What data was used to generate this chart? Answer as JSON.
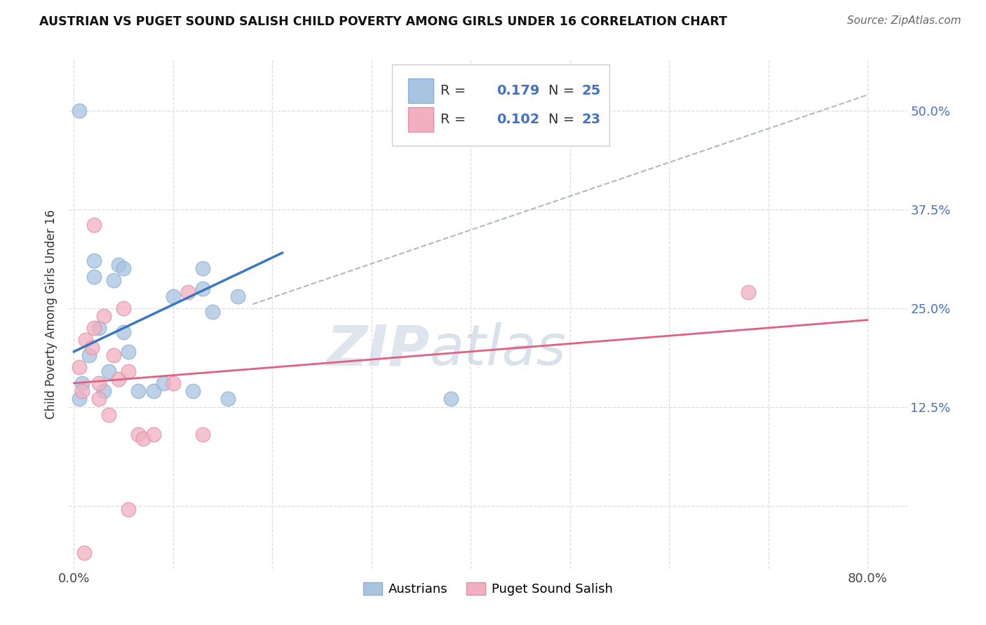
{
  "title": "AUSTRIAN VS PUGET SOUND SALISH CHILD POVERTY AMONG GIRLS UNDER 16 CORRELATION CHART",
  "source": "Source: ZipAtlas.com",
  "ylabel": "Child Poverty Among Girls Under 16",
  "ylim": [
    -0.08,
    0.565
  ],
  "xlim": [
    -0.005,
    0.84
  ],
  "yticks": [
    0.0,
    0.125,
    0.25,
    0.375,
    0.5
  ],
  "ytick_labels_right": [
    "",
    "12.5%",
    "25.0%",
    "37.5%",
    "50.0%"
  ],
  "xticks": [
    0.0,
    0.1,
    0.2,
    0.3,
    0.4,
    0.5,
    0.6,
    0.7,
    0.8
  ],
  "xtick_labels": [
    "0.0%",
    "",
    "",
    "",
    "",
    "",
    "",
    "",
    "80.0%"
  ],
  "blue_R": "0.179",
  "blue_N": "25",
  "pink_R": "0.102",
  "pink_N": "23",
  "blue_scatter_color": "#a8c4e0",
  "pink_scatter_color": "#f2afc0",
  "blue_line_color": "#3b78c3",
  "pink_line_color": "#e06080",
  "dashed_line_color": "#b0b8c8",
  "legend_label_blue": "Austrians",
  "legend_label_pink": "Puget Sound Salish",
  "blue_scatter_x": [
    0.005,
    0.008,
    0.015,
    0.02,
    0.02,
    0.025,
    0.03,
    0.035,
    0.04,
    0.045,
    0.05,
    0.05,
    0.055,
    0.065,
    0.08,
    0.09,
    0.1,
    0.12,
    0.13,
    0.14,
    0.155,
    0.165,
    0.005,
    0.38,
    0.13
  ],
  "blue_scatter_y": [
    0.135,
    0.155,
    0.19,
    0.29,
    0.31,
    0.225,
    0.145,
    0.17,
    0.285,
    0.305,
    0.22,
    0.3,
    0.195,
    0.145,
    0.145,
    0.155,
    0.265,
    0.145,
    0.275,
    0.245,
    0.135,
    0.265,
    0.5,
    0.135,
    0.3
  ],
  "pink_scatter_x": [
    0.005,
    0.008,
    0.012,
    0.018,
    0.02,
    0.025,
    0.03,
    0.04,
    0.045,
    0.05,
    0.055,
    0.065,
    0.07,
    0.08,
    0.1,
    0.115,
    0.13,
    0.02,
    0.025,
    0.68,
    0.035,
    0.055,
    0.01
  ],
  "pink_scatter_y": [
    0.175,
    0.145,
    0.21,
    0.2,
    0.225,
    0.135,
    0.24,
    0.19,
    0.16,
    0.25,
    0.17,
    0.09,
    0.085,
    0.09,
    0.155,
    0.27,
    0.09,
    0.355,
    0.155,
    0.27,
    0.115,
    -0.005,
    -0.06
  ],
  "blue_line_x0": 0.0,
  "blue_line_x1": 0.21,
  "blue_line_y0": 0.195,
  "blue_line_y1": 0.32,
  "pink_line_x0": 0.0,
  "pink_line_x1": 0.8,
  "pink_line_y0": 0.155,
  "pink_line_y1": 0.235,
  "dashed_line_x0": 0.18,
  "dashed_line_x1": 0.8,
  "dashed_line_y0": 0.255,
  "dashed_line_y1": 0.52,
  "watermark_zip": "ZIP",
  "watermark_atlas": "atlas",
  "background_color": "#ffffff",
  "grid_color": "#dddddd",
  "legend_R_color": "#4472c4",
  "legend_N_color": "#4472c4"
}
